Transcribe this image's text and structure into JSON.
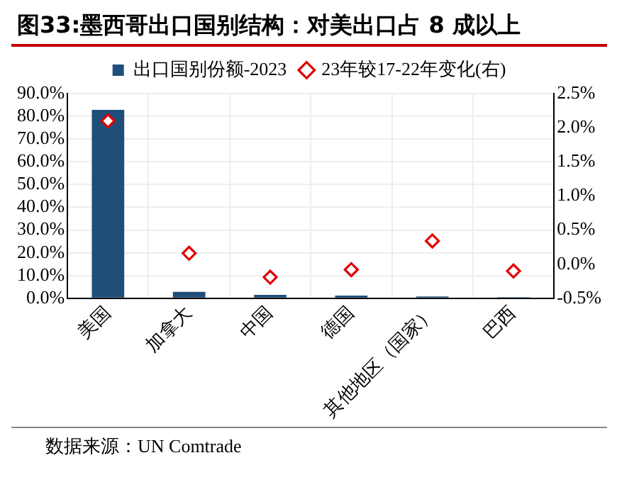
{
  "chart_data": {
    "type": "bar",
    "title": "图33:墨西哥出口国别结构：对美出口占 8 成以上",
    "categories": [
      "美国",
      "加拿大",
      "中国",
      "德国",
      "其他地区（国家）",
      "巴西"
    ],
    "series": [
      {
        "name": "出口国别份额-2023",
        "color": "#1f4e79",
        "values": [
          82.8,
          2.8,
          1.5,
          1.2,
          0.8,
          0.5
        ]
      },
      {
        "name": "23年较17-22年变化(右)",
        "type": "scatter",
        "axis": "y2",
        "color": "#e00000",
        "marker": "diamond",
        "values": [
          2.1,
          0.16,
          -0.19,
          -0.08,
          0.34,
          -0.1
        ]
      }
    ],
    "ylim": [
      0,
      90
    ],
    "yticks": [
      {
        "value": 0,
        "label": "0.0%"
      },
      {
        "value": 10,
        "label": "10.0%"
      },
      {
        "value": 20,
        "label": "20.0%"
      },
      {
        "value": 30,
        "label": "30.0%"
      },
      {
        "value": 40,
        "label": "40.0%"
      },
      {
        "value": 50,
        "label": "50.0%"
      },
      {
        "value": 60,
        "label": "60.0%"
      },
      {
        "value": 70,
        "label": "70.0%"
      },
      {
        "value": 80,
        "label": "80.0%"
      },
      {
        "value": 90,
        "label": "90.0%"
      }
    ],
    "y2lim": [
      -0.5,
      2.5
    ],
    "y2ticks": [
      {
        "value": -0.5,
        "label": "-0.5%"
      },
      {
        "value": 0,
        "label": "0.0%"
      },
      {
        "value": 0.5,
        "label": "0.5%"
      },
      {
        "value": 1,
        "label": "1.0%"
      },
      {
        "value": 1.5,
        "label": "1.5%"
      },
      {
        "value": 2,
        "label": "2.0%"
      },
      {
        "value": 2.5,
        "label": "2.5%"
      }
    ],
    "grid": true,
    "legend": "top",
    "annotations": [
      "数据来源：UN Comtrade"
    ]
  }
}
